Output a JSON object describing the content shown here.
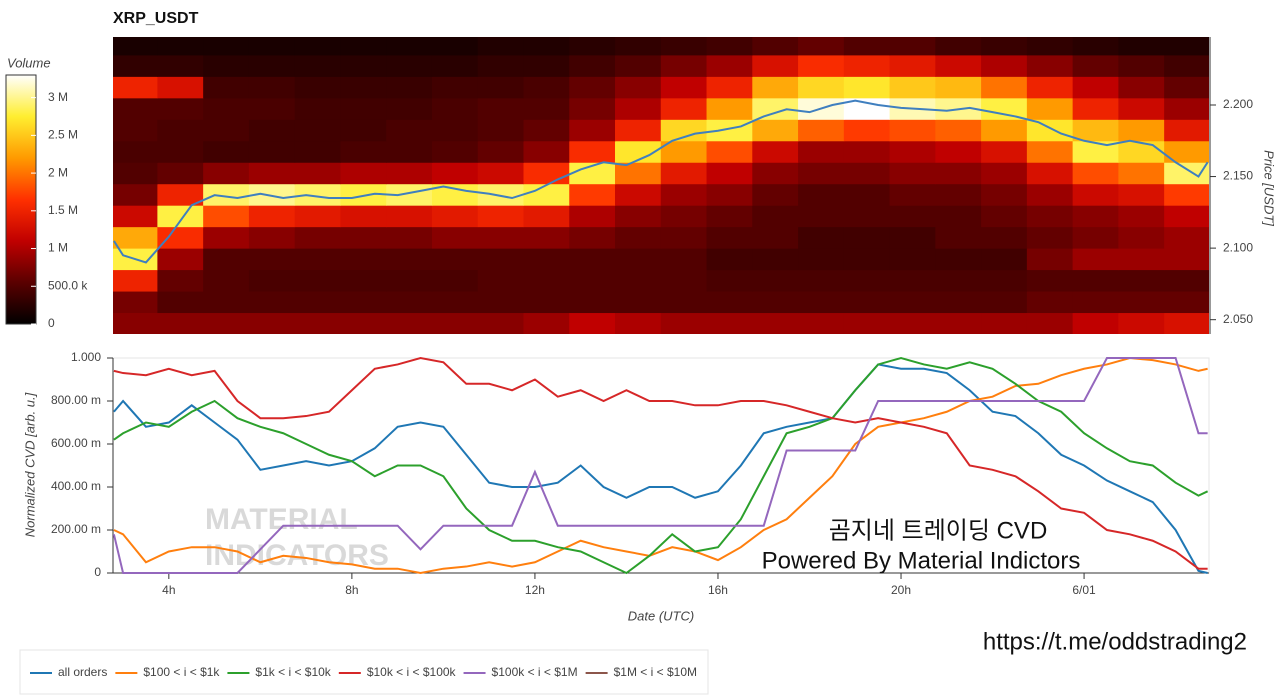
{
  "chart_data": [
    {
      "type": "heatmap",
      "title": "XRP_USDT",
      "y_label": "Price [USDT]",
      "colorbar_label": "Volume",
      "xlim": [
        2.78,
        26.73
      ],
      "ylim": [
        2.04,
        2.2475
      ],
      "yticks": [
        {
          "value": 2.05,
          "label": "2.050"
        },
        {
          "value": 2.1,
          "label": "2.100"
        },
        {
          "value": 2.15,
          "label": "2.150"
        },
        {
          "value": 2.2,
          "label": "2.200"
        }
      ],
      "zlim": [
        0,
        3300000
      ],
      "zticks": [
        0,
        {
          "value": 500000,
          "label": "500.0 k"
        },
        {
          "value": 1000000,
          "label": "1 M"
        },
        {
          "value": 1500000,
          "label": "1.5 M"
        },
        {
          "value": 2000000,
          "label": "2 M"
        },
        {
          "value": 2500000,
          "label": "2.5 M"
        },
        {
          "value": 3000000,
          "label": "3 M"
        }
      ],
      "colormap": [
        "#000000",
        "#5a0000",
        "#c00000",
        "#ff3000",
        "#ff9a00",
        "#ffee30",
        "#ffffff"
      ],
      "x_bins": [
        2.75,
        3.75,
        4.75,
        5.75,
        6.75,
        7.75,
        8.75,
        9.75,
        10.75,
        11.75,
        12.75,
        13.75,
        14.75,
        15.75,
        16.75,
        17.75,
        18.75,
        19.75,
        20.75,
        21.75,
        22.75,
        23.75,
        24.75,
        25.75,
        26.75
      ],
      "y_bins": [
        2.04,
        2.055,
        2.07,
        2.085,
        2.1,
        2.115,
        2.13,
        2.145,
        2.16,
        2.175,
        2.19,
        2.205,
        2.22,
        2.235,
        2.25
      ],
      "values": [
        [
          800000,
          800000,
          800000,
          800000,
          800000,
          800000,
          800000,
          800000,
          800000,
          900000,
          1100000,
          1000000,
          900000,
          900000,
          900000,
          900000,
          900000,
          900000,
          900000,
          900000,
          900000,
          1100000,
          1200000,
          1300000
        ],
        [
          700000,
          500000,
          500000,
          500000,
          500000,
          500000,
          500000,
          500000,
          500000,
          500000,
          500000,
          500000,
          500000,
          500000,
          500000,
          500000,
          500000,
          500000,
          500000,
          500000,
          600000,
          600000,
          600000,
          600000
        ],
        [
          1500000,
          600000,
          500000,
          450000,
          450000,
          450000,
          450000,
          450000,
          500000,
          500000,
          500000,
          500000,
          500000,
          450000,
          450000,
          450000,
          450000,
          450000,
          450000,
          450000,
          500000,
          500000,
          500000,
          500000
        ],
        [
          2800000,
          900000,
          500000,
          500000,
          500000,
          500000,
          500000,
          500000,
          500000,
          500000,
          500000,
          500000,
          500000,
          400000,
          400000,
          400000,
          400000,
          400000,
          400000,
          400000,
          700000,
          900000,
          900000,
          900000
        ],
        [
          2300000,
          1600000,
          900000,
          800000,
          700000,
          700000,
          700000,
          800000,
          800000,
          800000,
          700000,
          600000,
          600000,
          500000,
          500000,
          400000,
          400000,
          400000,
          500000,
          500000,
          600000,
          700000,
          800000,
          900000
        ],
        [
          1200000,
          2800000,
          1800000,
          1500000,
          1400000,
          1300000,
          1300000,
          1400000,
          1500000,
          1400000,
          1000000,
          800000,
          700000,
          600000,
          500000,
          500000,
          500000,
          500000,
          500000,
          600000,
          700000,
          800000,
          900000,
          1100000
        ],
        [
          700000,
          1500000,
          2900000,
          3000000,
          2900000,
          2800000,
          2900000,
          2800000,
          2900000,
          2800000,
          1700000,
          1200000,
          900000,
          800000,
          600000,
          500000,
          500000,
          600000,
          600000,
          700000,
          900000,
          1200000,
          1300000,
          1700000
        ],
        [
          500000,
          600000,
          800000,
          900000,
          900000,
          1000000,
          1000000,
          1100000,
          1200000,
          1600000,
          2800000,
          2000000,
          1400000,
          1100000,
          800000,
          700000,
          700000,
          800000,
          800000,
          900000,
          1300000,
          1800000,
          2000000,
          2900000
        ],
        [
          450000,
          450000,
          400000,
          400000,
          400000,
          450000,
          450000,
          500000,
          600000,
          800000,
          1600000,
          2700000,
          2200000,
          1800000,
          1200000,
          900000,
          900000,
          1000000,
          1100000,
          1300000,
          2000000,
          2800000,
          2600000,
          2200000
        ],
        [
          500000,
          450000,
          450000,
          400000,
          400000,
          400000,
          450000,
          450000,
          500000,
          600000,
          900000,
          1500000,
          2600000,
          2800000,
          2300000,
          1900000,
          1700000,
          1800000,
          1900000,
          2200000,
          2700000,
          2400000,
          2200000,
          1400000
        ],
        [
          500000,
          500000,
          450000,
          450000,
          400000,
          400000,
          400000,
          450000,
          500000,
          500000,
          700000,
          1000000,
          1500000,
          2200000,
          2900000,
          3200000,
          3300000,
          3100000,
          3000000,
          2800000,
          2200000,
          1500000,
          1200000,
          900000
        ],
        [
          1500000,
          1300000,
          400000,
          400000,
          350000,
          350000,
          350000,
          400000,
          400000,
          450000,
          600000,
          800000,
          1100000,
          1500000,
          2300000,
          2600000,
          2700000,
          2500000,
          2400000,
          2000000,
          1500000,
          1100000,
          800000,
          600000
        ],
        [
          300000,
          300000,
          250000,
          250000,
          250000,
          250000,
          250000,
          250000,
          300000,
          300000,
          400000,
          500000,
          700000,
          900000,
          1300000,
          1600000,
          1500000,
          1400000,
          1200000,
          1000000,
          800000,
          600000,
          500000,
          400000
        ],
        [
          150000,
          150000,
          150000,
          150000,
          150000,
          150000,
          150000,
          150000,
          200000,
          200000,
          250000,
          300000,
          350000,
          400000,
          500000,
          600000,
          500000,
          500000,
          400000,
          350000,
          300000,
          250000,
          200000,
          200000
        ]
      ],
      "line": {
        "color": "#3f7fbf",
        "x": [
          2.8,
          3,
          3.5,
          4,
          4.5,
          5,
          5.5,
          6,
          6.5,
          7,
          7.5,
          8,
          8.5,
          9,
          9.5,
          10,
          10.5,
          11,
          11.5,
          12,
          12.5,
          13,
          13.5,
          14,
          14.5,
          15,
          15.5,
          16,
          16.5,
          17,
          17.5,
          18,
          18.5,
          19,
          19.5,
          20,
          20.5,
          21,
          21.5,
          22,
          22.5,
          23,
          23.5,
          24,
          24.5,
          25,
          25.5,
          26,
          26.5,
          26.7
        ],
        "values": [
          2.105,
          2.095,
          2.09,
          2.108,
          2.13,
          2.137,
          2.135,
          2.138,
          2.135,
          2.137,
          2.135,
          2.135,
          2.138,
          2.137,
          2.14,
          2.143,
          2.14,
          2.138,
          2.135,
          2.14,
          2.148,
          2.155,
          2.16,
          2.158,
          2.165,
          2.175,
          2.18,
          2.182,
          2.185,
          2.192,
          2.197,
          2.195,
          2.2,
          2.203,
          2.2,
          2.198,
          2.197,
          2.196,
          2.198,
          2.195,
          2.192,
          2.188,
          2.18,
          2.175,
          2.172,
          2.175,
          2.172,
          2.16,
          2.15,
          2.16
        ]
      }
    },
    {
      "type": "line",
      "y_label": "Normalized CVD [arb. u.]",
      "x_label": "Date (UTC)",
      "xlim": [
        2.78,
        26.73
      ],
      "ylim": [
        0,
        1
      ],
      "xticks": [
        {
          "value": 4,
          "label": "4h"
        },
        {
          "value": 8,
          "label": "8h"
        },
        {
          "value": 12,
          "label": "12h"
        },
        {
          "value": 16,
          "label": "16h"
        },
        {
          "value": 20,
          "label": "20h"
        },
        {
          "value": 24,
          "label": "6/01"
        }
      ],
      "yticks": [
        0,
        {
          "value": 0.2,
          "label": "200.00 m"
        },
        {
          "value": 0.4,
          "label": "400.00 m"
        },
        {
          "value": 0.6,
          "label": "600.00 m"
        },
        {
          "value": 0.8,
          "label": "800.00 m"
        },
        {
          "value": 1,
          "label": "1.000"
        }
      ],
      "legend": "bottom-left",
      "x": [
        2.8,
        3,
        3.5,
        4,
        4.5,
        5,
        5.5,
        6,
        6.5,
        7,
        7.5,
        8,
        8.5,
        9,
        9.5,
        10,
        10.5,
        11,
        11.5,
        12,
        12.5,
        13,
        13.5,
        14,
        14.5,
        15,
        15.5,
        16,
        16.5,
        17,
        17.5,
        18,
        18.5,
        19,
        19.5,
        20,
        20.5,
        21,
        21.5,
        22,
        22.5,
        23,
        23.5,
        24,
        24.5,
        25,
        25.5,
        26,
        26.5,
        26.7
      ],
      "series": [
        {
          "name": "all orders",
          "color": "#1f77b4",
          "values": [
            0.75,
            0.8,
            0.68,
            0.7,
            0.78,
            0.7,
            0.62,
            0.48,
            0.5,
            0.52,
            0.5,
            0.52,
            0.58,
            0.68,
            0.7,
            0.68,
            0.55,
            0.42,
            0.4,
            0.4,
            0.42,
            0.5,
            0.4,
            0.35,
            0.4,
            0.4,
            0.35,
            0.38,
            0.5,
            0.65,
            0.68,
            0.7,
            0.72,
            0.85,
            0.97,
            0.95,
            0.95,
            0.93,
            0.85,
            0.75,
            0.73,
            0.65,
            0.55,
            0.5,
            0.43,
            0.38,
            0.33,
            0.2,
            0.01,
            0
          ]
        },
        {
          "name": "$100 < i < $1k",
          "color": "#ff7f0e",
          "values": [
            0.2,
            0.18,
            0.05,
            0.1,
            0.12,
            0.12,
            0.1,
            0.05,
            0.08,
            0.07,
            0.05,
            0.04,
            0.02,
            0.02,
            0,
            0.02,
            0.03,
            0.05,
            0.03,
            0.05,
            0.1,
            0.15,
            0.12,
            0.1,
            0.08,
            0.12,
            0.1,
            0.06,
            0.12,
            0.2,
            0.25,
            0.35,
            0.45,
            0.6,
            0.68,
            0.7,
            0.72,
            0.75,
            0.8,
            0.82,
            0.87,
            0.88,
            0.92,
            0.95,
            0.97,
            1,
            0.99,
            0.97,
            0.94,
            0.95
          ]
        },
        {
          "name": "$1k < i < $10k",
          "color": "#2ca02c",
          "values": [
            0.62,
            0.65,
            0.7,
            0.68,
            0.75,
            0.8,
            0.72,
            0.68,
            0.65,
            0.6,
            0.55,
            0.52,
            0.45,
            0.5,
            0.5,
            0.45,
            0.3,
            0.2,
            0.15,
            0.15,
            0.12,
            0.1,
            0.05,
            0,
            0.08,
            0.18,
            0.1,
            0.12,
            0.25,
            0.45,
            0.65,
            0.68,
            0.72,
            0.85,
            0.97,
            1,
            0.97,
            0.95,
            0.98,
            0.95,
            0.88,
            0.8,
            0.75,
            0.65,
            0.58,
            0.52,
            0.5,
            0.42,
            0.36,
            0.38
          ]
        },
        {
          "name": "$10k < i < $100k",
          "color": "#d62728",
          "values": [
            0.94,
            0.93,
            0.92,
            0.95,
            0.92,
            0.94,
            0.8,
            0.72,
            0.72,
            0.73,
            0.75,
            0.85,
            0.95,
            0.97,
            1,
            0.98,
            0.88,
            0.88,
            0.85,
            0.9,
            0.82,
            0.85,
            0.8,
            0.85,
            0.8,
            0.8,
            0.78,
            0.78,
            0.8,
            0.8,
            0.78,
            0.75,
            0.72,
            0.7,
            0.72,
            0.7,
            0.68,
            0.65,
            0.5,
            0.48,
            0.45,
            0.38,
            0.3,
            0.28,
            0.2,
            0.18,
            0.15,
            0.1,
            0.02,
            0.02
          ]
        },
        {
          "name": "$100k < i < $1M",
          "color": "#9467bd",
          "values": [
            0.18,
            0,
            0,
            0,
            0,
            0,
            0,
            0.11,
            0.22,
            0.22,
            0.22,
            0.22,
            0.22,
            0.22,
            0.11,
            0.22,
            0.22,
            0.22,
            0.22,
            0.47,
            0.22,
            0.22,
            0.22,
            0.22,
            0.22,
            0.22,
            0.22,
            0.22,
            0.22,
            0.22,
            0.57,
            0.57,
            0.57,
            0.57,
            0.8,
            0.8,
            0.8,
            0.8,
            0.8,
            0.8,
            0.8,
            0.8,
            0.8,
            0.8,
            1,
            1,
            1,
            1,
            0.65,
            0.65
          ]
        },
        {
          "name": "$1M < i < $10M",
          "color": "#8c564b",
          "values": [
            null,
            null,
            null,
            null,
            null,
            null,
            null,
            null,
            null,
            null,
            null,
            null,
            null,
            null,
            null,
            null,
            null,
            null,
            null,
            null,
            null,
            null,
            null,
            null,
            null,
            null,
            null,
            null,
            null,
            null,
            null,
            null,
            null,
            null,
            null,
            null,
            null,
            null,
            null,
            null,
            null,
            null,
            null,
            null,
            null,
            null,
            null,
            null,
            null,
            null
          ]
        }
      ],
      "annotations": [
        "곰지네 트레이딩 CVD",
        "Powered By Material Indictors"
      ],
      "watermark": [
        "MATERIAL",
        "INDICATORS"
      ]
    }
  ],
  "footer_link": "https://t.me/oddstrading2"
}
